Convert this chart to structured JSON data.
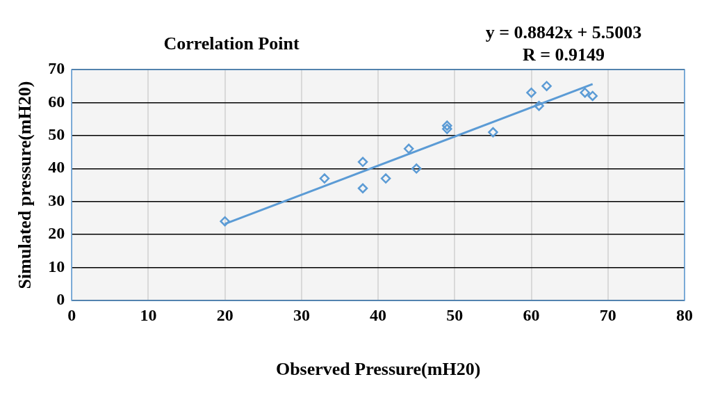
{
  "chart_data": {
    "type": "scatter",
    "title": "Correlation Point",
    "xlabel": "Observed Pressure(mH20)",
    "ylabel": "Simulated pressure(mH20)",
    "annotations": [
      "y = 0.8842x + 5.5003",
      "R = 0.9149"
    ],
    "series": [
      {
        "color": "#5b9bd5",
        "marker": "diamond",
        "x": [
          20,
          33,
          38,
          38,
          41,
          44,
          45,
          49,
          49,
          55,
          60,
          61,
          62,
          67,
          68
        ],
        "values": [
          24,
          37,
          42,
          34,
          37,
          46,
          40,
          52,
          53,
          51,
          63,
          59,
          65,
          63,
          62
        ]
      },
      {
        "type": "line",
        "color": "#5b9bd5",
        "marker": "none",
        "line_style": "solid",
        "x": [
          20,
          68
        ],
        "values": [
          23.2,
          65.6
        ]
      }
    ],
    "xlim": [
      0,
      80
    ],
    "xticks": [
      0,
      10,
      20,
      30,
      40,
      50,
      60,
      70,
      80
    ],
    "ylim": [
      0,
      70
    ],
    "yticks": [
      0,
      10,
      20,
      30,
      40,
      50,
      60,
      70
    ],
    "grid": true,
    "legend": false
  }
}
